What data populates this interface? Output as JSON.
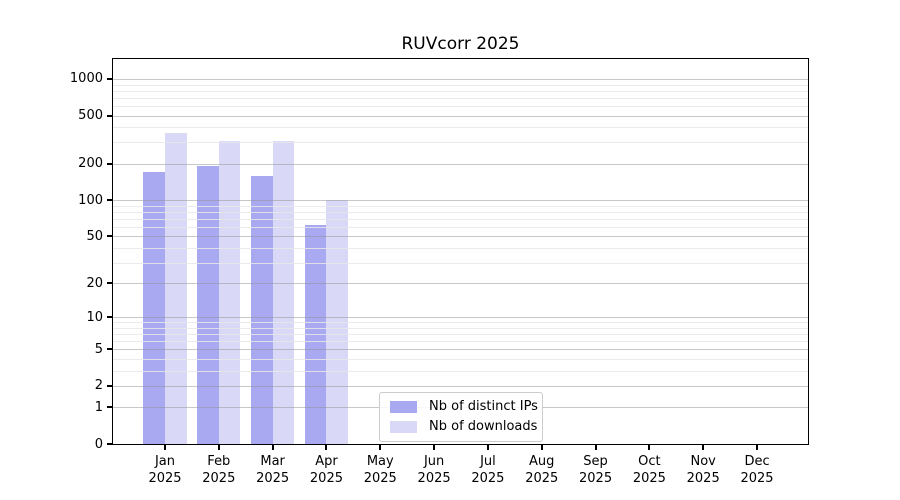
{
  "title": "RUVcorr 2025",
  "legend": {
    "items": [
      {
        "label": "Nb of distinct IPs",
        "color": "#a9a9f2"
      },
      {
        "label": "Nb of downloads",
        "color": "#d9d9f7"
      }
    ]
  },
  "chart_data": {
    "type": "bar",
    "title": "RUVcorr 2025",
    "xlabel": "",
    "ylabel": "",
    "yscale": "log10(1+y)",
    "ylim": [
      0,
      1460
    ],
    "yticks": [
      0,
      1,
      2,
      5,
      10,
      20,
      50,
      100,
      200,
      500,
      1000
    ],
    "minor_yticks": [
      3,
      4,
      6,
      7,
      8,
      9,
      30,
      40,
      60,
      70,
      80,
      90,
      300,
      400,
      600,
      700,
      800,
      900
    ],
    "grid": true,
    "legend_position": "inside lower-center",
    "categories": [
      "Jan",
      "Feb",
      "Mar",
      "Apr",
      "May",
      "Jun",
      "Jul",
      "Aug",
      "Sep",
      "Oct",
      "Nov",
      "Dec"
    ],
    "year_label": "2025",
    "series": [
      {
        "name": "Nb of distinct IPs",
        "color": "#a9a9f2",
        "values": [
          170,
          190,
          160,
          62,
          0,
          0,
          0,
          0,
          0,
          0,
          0,
          0
        ]
      },
      {
        "name": "Nb of downloads",
        "color": "#d9d9f7",
        "values": [
          360,
          310,
          310,
          100,
          0,
          0,
          0,
          0,
          0,
          0,
          0,
          0
        ]
      }
    ]
  }
}
